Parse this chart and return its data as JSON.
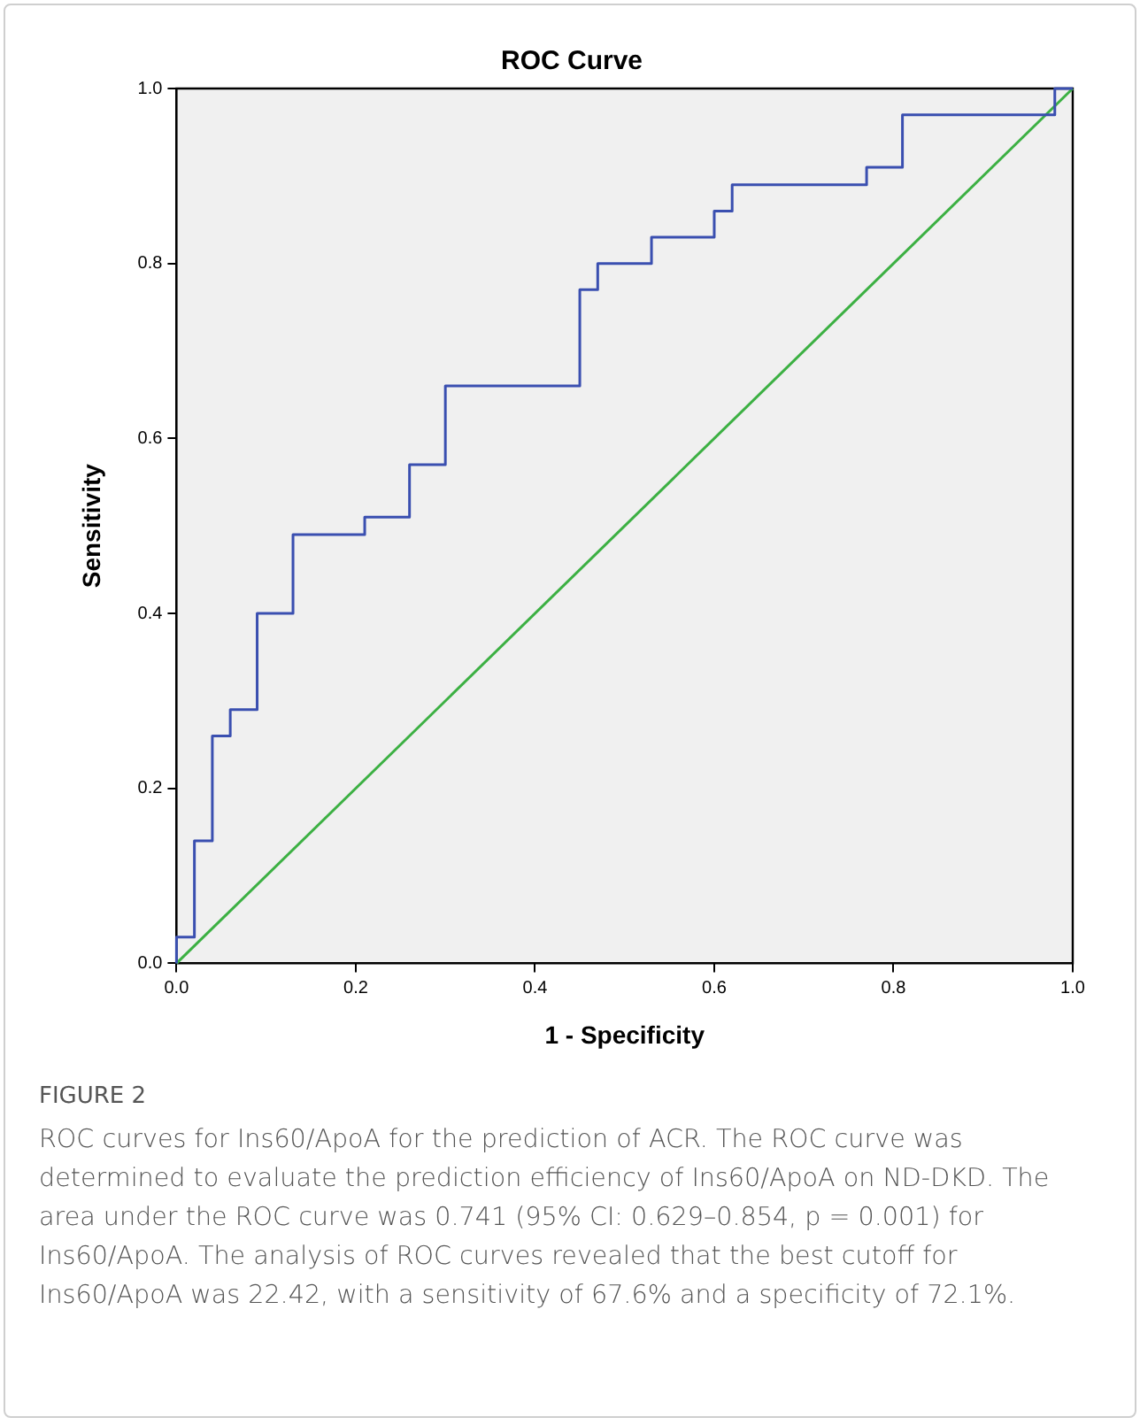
{
  "chart_data": {
    "type": "line",
    "title": "ROC Curve",
    "xlabel": "1 - Specificity",
    "ylabel": "Sensitivity",
    "series": [
      {
        "type": "step",
        "color": "#3a4fb0",
        "x": [
          0,
          0,
          0.02,
          0.04,
          0.06,
          0.09,
          0.13,
          0.21,
          0.26,
          0.3,
          0.45,
          0.47,
          0.53,
          0.6,
          0.62,
          0.77,
          0.81,
          0.98,
          1
        ],
        "values": [
          0,
          0.03,
          0.14,
          0.26,
          0.29,
          0.4,
          0.49,
          0.51,
          0.57,
          0.66,
          0.77,
          0.8,
          0.83,
          0.86,
          0.89,
          0.91,
          0.97,
          1,
          1
        ]
      },
      {
        "type": "line",
        "color": "#3cb043",
        "x": [
          0,
          1
        ],
        "values": [
          0,
          1
        ]
      }
    ],
    "xlim": [
      0,
      1
    ],
    "ylim": [
      0,
      1
    ],
    "xticks": [
      {
        "value": 0,
        "label": "0.0"
      },
      {
        "value": 0.2,
        "label": "0.2"
      },
      {
        "value": 0.4,
        "label": "0.4"
      },
      {
        "value": 0.6,
        "label": "0.6"
      },
      {
        "value": 0.8,
        "label": "0.8"
      },
      {
        "value": 1,
        "label": "1.0"
      }
    ],
    "yticks": [
      {
        "value": 0,
        "label": "0.0"
      },
      {
        "value": 0.2,
        "label": "0.2"
      },
      {
        "value": 0.4,
        "label": "0.4"
      },
      {
        "value": 0.6,
        "label": "0.6"
      },
      {
        "value": 0.8,
        "label": "0.8"
      },
      {
        "value": 1,
        "label": "1.0"
      }
    ],
    "grid": false,
    "legend": false,
    "marker": "none",
    "annotations": [
      "FIGURE 2",
      "ROC curves for Ins60/ApoA for the prediction of ACR. The ROC curve was determined to evaluate the prediction efficiency of Ins60/ApoA on ND-DKD. The area under the ROC curve was 0.741 (95% CI: 0.629–0.854, p = 0.001) for Ins60/ApoA. The analysis of ROC curves revealed that the best cutoff for Ins60/ApoA was 22.42, with a sensitivity of 67.6% and a specificity of 72.1%."
    ]
  }
}
